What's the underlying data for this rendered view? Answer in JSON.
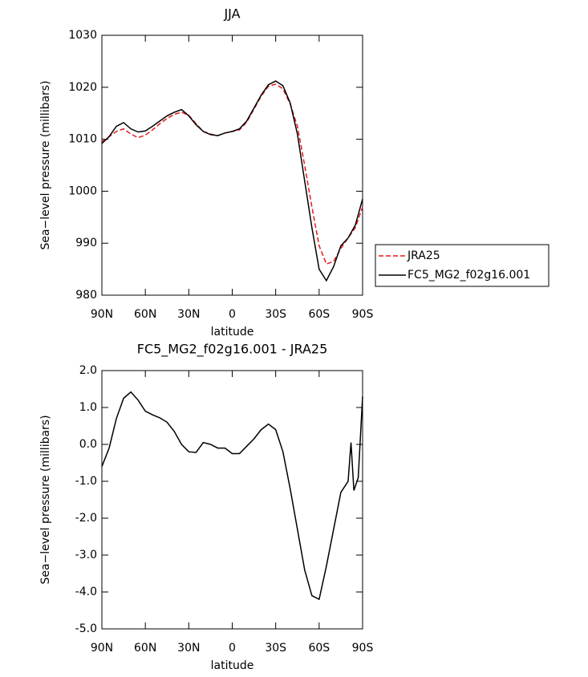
{
  "chart_data": [
    {
      "type": "line",
      "title": "JJA",
      "xlabel": "latitude",
      "ylabel": "Sea−level pressure (millibars)",
      "x": [
        90,
        85,
        80,
        75,
        70,
        65,
        60,
        55,
        50,
        45,
        40,
        35,
        30,
        25,
        20,
        15,
        10,
        5,
        0,
        -5,
        -10,
        -15,
        -20,
        -25,
        -30,
        -35,
        -40,
        -45,
        -50,
        -55,
        -60,
        -65,
        -70,
        -75,
        -80,
        -85,
        -90
      ],
      "series": [
        {
          "name": "JRA25",
          "color": "#e41a1c",
          "style": "dashed",
          "values": [
            1009.5,
            1010.5,
            1011.5,
            1012,
            1011,
            1010.3,
            1010.8,
            1011.8,
            1013,
            1014,
            1014.8,
            1015.2,
            1014.6,
            1013,
            1011.5,
            1011,
            1010.7,
            1011.2,
            1011.5,
            1011.8,
            1013.3,
            1015.8,
            1018.3,
            1020.2,
            1020.6,
            1019.7,
            1016.8,
            1012.5,
            1005,
            997,
            989.5,
            986,
            986.5,
            989,
            991,
            993,
            997
          ]
        },
        {
          "name": "FC5_MG2_f02g16.001",
          "color": "#000000",
          "style": "solid",
          "values": [
            1009.2,
            1010.5,
            1012.5,
            1013.2,
            1012,
            1011.4,
            1011.6,
            1012.5,
            1013.5,
            1014.5,
            1015.2,
            1015.7,
            1014.5,
            1012.8,
            1011.5,
            1010.9,
            1010.7,
            1011.2,
            1011.5,
            1012,
            1013.5,
            1016,
            1018.5,
            1020.5,
            1021.2,
            1020.3,
            1017,
            1011,
            1002,
            993,
            985,
            982.8,
            985.5,
            989.5,
            991,
            993.5,
            998.5
          ]
        }
      ],
      "xlim": [
        90,
        -90
      ],
      "xticks": [
        {
          "value": 90,
          "label": "90N"
        },
        {
          "value": 60,
          "label": "60N"
        },
        {
          "value": 30,
          "label": "30N"
        },
        0,
        {
          "value": -30,
          "label": "30S"
        },
        {
          "value": -60,
          "label": "60S"
        },
        {
          "value": -90,
          "label": "90S"
        }
      ],
      "ylim": [
        980,
        1030
      ],
      "yticks": [
        980,
        990,
        1000,
        1010,
        1020,
        1030
      ],
      "legend": "right"
    },
    {
      "type": "line",
      "title": "FC5_MG2_f02g16.001 - JRA25",
      "xlabel": "latitude",
      "ylabel": "Sea−level pressure (millibars)",
      "x": [
        90,
        85,
        80,
        75,
        70,
        65,
        60,
        55,
        50,
        45,
        40,
        35,
        30,
        25,
        20,
        15,
        10,
        5,
        0,
        -5,
        -10,
        -15,
        -20,
        -25,
        -30,
        -35,
        -40,
        -45,
        -50,
        -55,
        -60,
        -65,
        -70,
        -75,
        -80,
        -82,
        -84,
        -87,
        -90
      ],
      "values": [
        -0.6,
        -0.1,
        0.7,
        1.25,
        1.42,
        1.2,
        0.9,
        0.8,
        0.72,
        0.6,
        0.35,
        0.0,
        -0.2,
        -0.22,
        0.05,
        0.0,
        -0.1,
        -0.1,
        -0.25,
        -0.25,
        -0.05,
        0.15,
        0.4,
        0.55,
        0.4,
        -0.2,
        -1.2,
        -2.3,
        -3.4,
        -4.1,
        -4.2,
        -3.3,
        -2.3,
        -1.3,
        -1.0,
        0.05,
        -1.25,
        -0.9,
        1.3
      ],
      "color": "#000000",
      "xlim": [
        90,
        -90
      ],
      "xticks": [
        {
          "value": 90,
          "label": "90N"
        },
        {
          "value": 60,
          "label": "60N"
        },
        {
          "value": 30,
          "label": "30N"
        },
        0,
        {
          "value": -30,
          "label": "30S"
        },
        {
          "value": -60,
          "label": "60S"
        },
        {
          "value": -90,
          "label": "90S"
        }
      ],
      "ylim": [
        -5,
        2
      ],
      "yticks": [
        {
          "value": -5,
          "label": "-5.0"
        },
        {
          "value": -4,
          "label": "-4.0"
        },
        {
          "value": -3,
          "label": "-3.0"
        },
        {
          "value": -2,
          "label": "-2.0"
        },
        {
          "value": -1,
          "label": "-1.0"
        },
        {
          "value": 0,
          "label": "0.0"
        },
        {
          "value": 1,
          "label": "1.0"
        },
        {
          "value": 2,
          "label": "2.0"
        }
      ]
    }
  ]
}
